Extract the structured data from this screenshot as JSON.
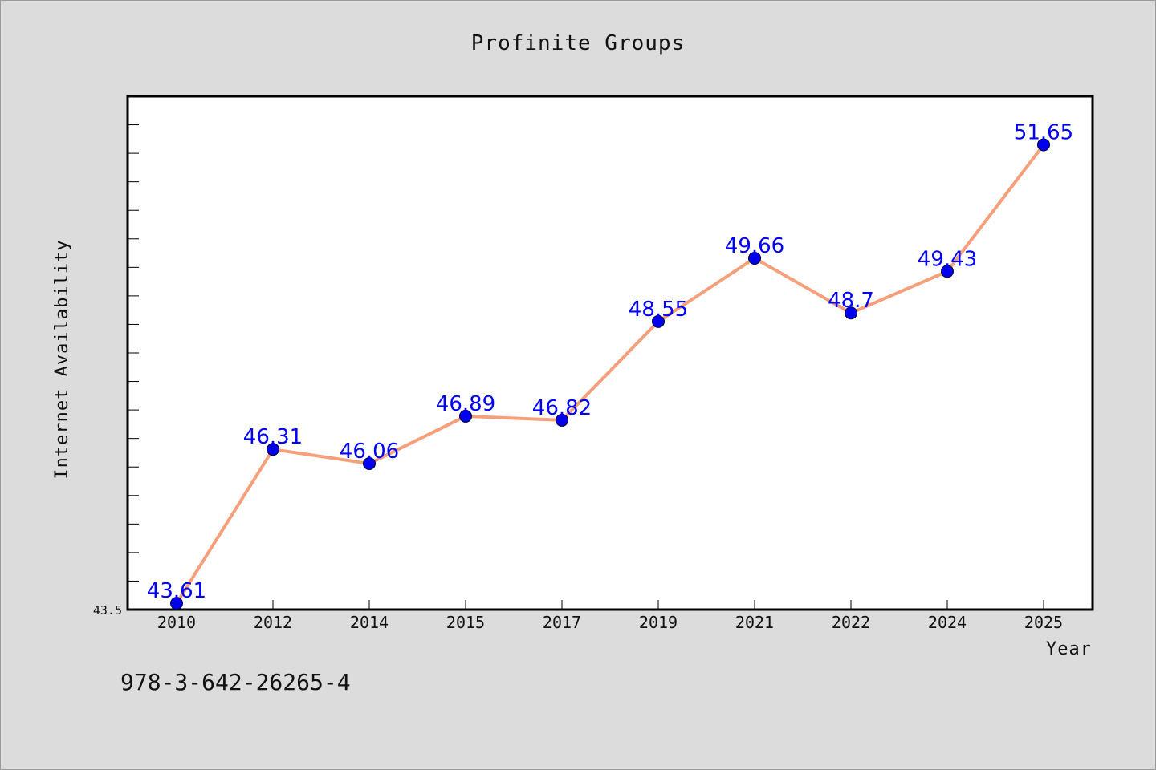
{
  "chart_data": {
    "type": "line",
    "title": "Profinite Groups",
    "xlabel": "Year",
    "ylabel": "Internet Availability",
    "categories": [
      "2010",
      "2012",
      "2014",
      "2015",
      "2017",
      "2019",
      "2021",
      "2022",
      "2024",
      "2025"
    ],
    "values": [
      43.61,
      46.31,
      46.06,
      46.89,
      46.82,
      48.55,
      49.66,
      48.7,
      49.43,
      51.65
    ],
    "data_labels": [
      "43.61",
      "46.31",
      "46.06",
      "46.89",
      "46.82",
      "48.55",
      "49.66",
      "48.7",
      "49.43",
      "51.65"
    ],
    "ylim": [
      43.5,
      52.5
    ],
    "y_tick_label": "43.5",
    "grid": false,
    "line_color": "#f5a07a",
    "marker_color": "#0000ee",
    "label_color": "#0000ff"
  },
  "footnote": "978-3-642-26265-4"
}
